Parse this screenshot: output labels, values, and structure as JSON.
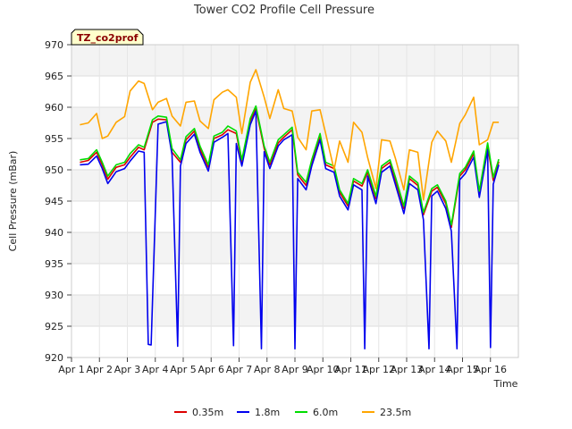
{
  "chart_data": {
    "type": "line",
    "title": "Tower CO2 Profile Cell Pressure",
    "site_label": "TZ_co2prof",
    "xlabel": "Time",
    "ylabel": "Cell Pressure (mBar)",
    "xlim": [
      0,
      16
    ],
    "ylim": [
      920,
      970
    ],
    "x_ticks": [
      0,
      1,
      2,
      3,
      4,
      5,
      6,
      7,
      8,
      9,
      10,
      11,
      12,
      13,
      14,
      15
    ],
    "x_tick_labels": [
      "Apr 1",
      "Apr 2",
      "Apr 3",
      "Apr 4",
      "Apr 5",
      "Apr 6",
      "Apr 7",
      "Apr 8",
      "Apr 9",
      "Apr 10",
      "Apr 11",
      "Apr 12",
      "Apr 13",
      "Apr 14",
      "Apr 15",
      "Apr 16"
    ],
    "y_ticks": [
      920,
      925,
      930,
      935,
      940,
      945,
      950,
      955,
      960,
      965,
      970
    ],
    "y_tick_labels": [
      "920",
      "925",
      "930",
      "935",
      "940",
      "945",
      "950",
      "955",
      "960",
      "965",
      "970"
    ],
    "grid": true,
    "banded_background": true,
    "legend_position": "bottom",
    "series": [
      {
        "name": "0.35m",
        "color": "#dd0000",
        "x": [
          0.3,
          0.6,
          0.9,
          1.1,
          1.3,
          1.6,
          1.9,
          2.1,
          2.4,
          2.6,
          2.9,
          3.1,
          3.4,
          3.6,
          3.9,
          4.1,
          4.4,
          4.6,
          4.9,
          5.1,
          5.4,
          5.6,
          5.9,
          6.1,
          6.4,
          6.6,
          6.9,
          7.1,
          7.4,
          7.6,
          7.9,
          8.1,
          8.4,
          8.6,
          8.9,
          9.1,
          9.4,
          9.6,
          9.9,
          10.1,
          10.4,
          10.6,
          10.9,
          11.1,
          11.4,
          11.6,
          11.9,
          12.1,
          12.4,
          12.6,
          12.9,
          13.1,
          13.4,
          13.6,
          13.9,
          14.1,
          14.4,
          14.6,
          14.9,
          15.1,
          15.3
        ],
        "values": [
          951.2,
          951.5,
          952.8,
          950.8,
          948.5,
          950.4,
          950.8,
          952.0,
          953.6,
          953.2,
          957.6,
          958.1,
          958.0,
          952.8,
          951.2,
          954.8,
          956.2,
          953.3,
          950.4,
          955.0,
          955.6,
          956.4,
          955.8,
          951.2,
          957.8,
          959.8,
          953.4,
          950.8,
          954.3,
          955.2,
          956.4,
          949.2,
          947.5,
          951.2,
          955.4,
          950.8,
          950.2,
          946.4,
          944.2,
          948.2,
          947.4,
          949.6,
          945.4,
          950.2,
          951.2,
          948.3,
          943.8,
          948.6,
          947.5,
          942.8,
          946.6,
          947.2,
          944.6,
          940.8,
          949.0,
          950.0,
          952.6,
          946.2,
          953.8,
          948.3,
          951.3
        ]
      },
      {
        "name": "1.8m",
        "color": "#0000ee",
        "x": [
          0.3,
          0.6,
          0.9,
          1.1,
          1.3,
          1.6,
          1.9,
          2.1,
          2.4,
          2.6,
          2.75,
          2.85,
          3.1,
          3.4,
          3.6,
          3.8,
          3.9,
          4.1,
          4.4,
          4.6,
          4.9,
          5.1,
          5.4,
          5.6,
          5.8,
          5.9,
          6.1,
          6.4,
          6.6,
          6.8,
          6.9,
          7.1,
          7.4,
          7.6,
          7.9,
          8.0,
          8.1,
          8.4,
          8.6,
          8.9,
          9.1,
          9.4,
          9.6,
          9.9,
          10.1,
          10.4,
          10.5,
          10.6,
          10.9,
          11.1,
          11.4,
          11.6,
          11.9,
          12.1,
          12.4,
          12.6,
          12.8,
          12.9,
          13.1,
          13.4,
          13.6,
          13.8,
          13.9,
          14.1,
          14.4,
          14.6,
          14.9,
          15.0,
          15.1,
          15.3
        ],
        "values": [
          950.8,
          950.9,
          952.2,
          950.2,
          947.8,
          949.7,
          950.2,
          951.4,
          953.0,
          952.8,
          922.1,
          922.0,
          957.3,
          957.7,
          952.4,
          921.8,
          950.6,
          954.2,
          955.7,
          952.8,
          949.8,
          954.4,
          955.2,
          955.8,
          921.9,
          954.2,
          950.6,
          957.2,
          959.4,
          921.4,
          952.9,
          950.2,
          953.8,
          954.8,
          955.6,
          921.4,
          948.6,
          946.8,
          950.6,
          954.8,
          950.2,
          949.6,
          945.8,
          943.6,
          947.6,
          946.8,
          921.4,
          949.0,
          944.6,
          949.6,
          950.6,
          947.6,
          943.0,
          947.8,
          946.8,
          942.0,
          921.4,
          945.8,
          946.6,
          943.8,
          940.2,
          921.4,
          948.4,
          949.4,
          952.0,
          945.6,
          953.2,
          921.6,
          947.7,
          950.8
        ]
      },
      {
        "name": "6.0m",
        "color": "#00dd00",
        "x": [
          0.3,
          0.6,
          0.9,
          1.1,
          1.3,
          1.6,
          1.9,
          2.1,
          2.4,
          2.6,
          2.9,
          3.1,
          3.4,
          3.6,
          3.9,
          4.1,
          4.4,
          4.6,
          4.9,
          5.1,
          5.4,
          5.6,
          5.9,
          6.1,
          6.4,
          6.6,
          6.9,
          7.1,
          7.4,
          7.6,
          7.9,
          8.1,
          8.4,
          8.6,
          8.9,
          9.1,
          9.4,
          9.6,
          9.9,
          10.1,
          10.4,
          10.6,
          10.9,
          11.1,
          11.4,
          11.6,
          11.9,
          12.1,
          12.4,
          12.6,
          12.9,
          13.1,
          13.4,
          13.6,
          13.9,
          14.1,
          14.4,
          14.6,
          14.9,
          15.1,
          15.3
        ],
        "values": [
          951.6,
          951.8,
          953.2,
          951.2,
          949.0,
          950.8,
          951.2,
          952.6,
          954.0,
          953.6,
          958.0,
          958.6,
          958.4,
          953.4,
          951.6,
          955.3,
          956.6,
          953.8,
          950.8,
          955.4,
          956.0,
          957.0,
          956.2,
          951.6,
          958.2,
          960.2,
          953.8,
          951.2,
          954.8,
          955.6,
          956.8,
          949.6,
          948.0,
          951.6,
          955.8,
          951.2,
          950.6,
          946.8,
          944.6,
          948.6,
          947.8,
          950.0,
          945.8,
          950.6,
          951.6,
          948.8,
          944.2,
          949.0,
          947.9,
          943.2,
          947.0,
          947.6,
          945.0,
          941.2,
          949.4,
          950.4,
          953.0,
          946.6,
          954.3,
          948.8,
          951.7
        ]
      },
      {
        "name": "23.5m",
        "color": "#ffa500",
        "x": [
          0.3,
          0.6,
          0.9,
          1.1,
          1.3,
          1.6,
          1.9,
          2.1,
          2.4,
          2.6,
          2.9,
          3.1,
          3.4,
          3.6,
          3.9,
          4.1,
          4.4,
          4.6,
          4.9,
          5.1,
          5.4,
          5.6,
          5.9,
          6.1,
          6.4,
          6.6,
          6.9,
          7.1,
          7.4,
          7.6,
          7.9,
          8.1,
          8.4,
          8.6,
          8.9,
          9.1,
          9.4,
          9.6,
          9.9,
          10.1,
          10.4,
          10.6,
          10.9,
          11.1,
          11.4,
          11.6,
          11.9,
          12.1,
          12.4,
          12.6,
          12.9,
          13.1,
          13.4,
          13.6,
          13.9,
          14.1,
          14.4,
          14.6,
          14.9,
          15.1,
          15.3
        ],
        "values": [
          957.2,
          957.5,
          959.0,
          955.0,
          955.4,
          957.6,
          958.5,
          962.6,
          964.2,
          963.8,
          959.6,
          960.8,
          961.4,
          958.6,
          957.0,
          960.8,
          961.0,
          957.8,
          956.6,
          961.2,
          962.4,
          962.8,
          961.6,
          955.8,
          964.0,
          966.0,
          961.6,
          958.2,
          962.8,
          959.8,
          959.4,
          955.2,
          953.2,
          959.4,
          959.6,
          955.8,
          950.0,
          954.6,
          951.2,
          957.6,
          956.0,
          952.0,
          947.0,
          954.8,
          954.6,
          951.8,
          946.8,
          953.2,
          952.8,
          945.2,
          954.4,
          956.2,
          954.6,
          951.2,
          957.4,
          958.8,
          961.6,
          954.0,
          954.8,
          957.6,
          957.6
        ]
      }
    ]
  }
}
